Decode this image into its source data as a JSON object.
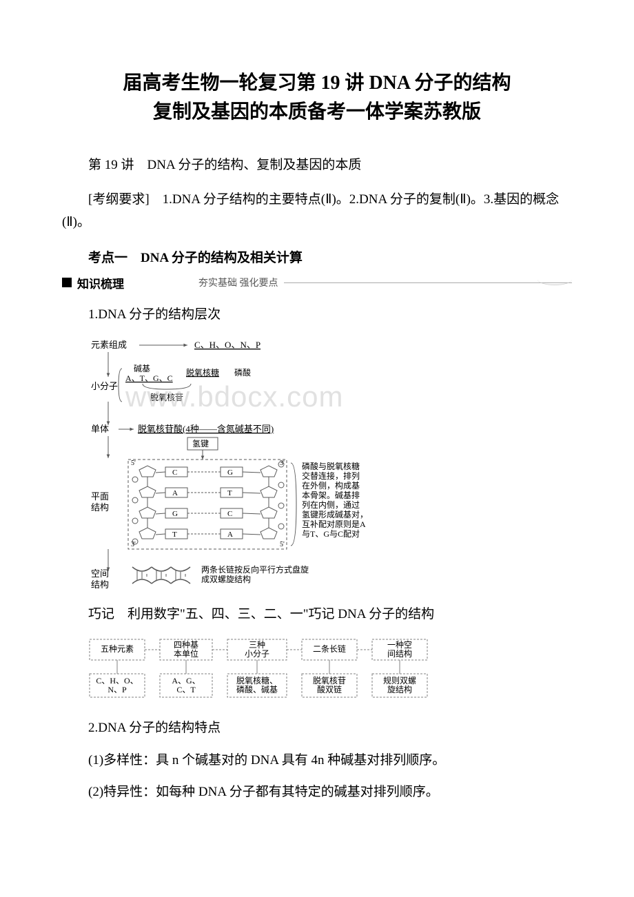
{
  "title_line1": "届高考生物一轮复习第 19 讲 DNA 分子的结构",
  "title_line2": "复制及基因的本质备考一体学案苏教版",
  "subtitle": "第 19 讲　DNA 分子的结构、复制及基因的本质",
  "bracket_note": "[考纲要求]　1.DNA 分子结构的主要特点(Ⅱ)。2.DNA 分子的复制(Ⅱ)。3.基因的概念(Ⅱ)。",
  "kaodian": "考点一　DNA 分子的结构及相关计算",
  "section_bar_label": "知识梳理",
  "section_bar_sub": "夯实基础  强化要点",
  "point1": "1.DNA 分子的结构层次",
  "qiaoji": "巧记　利用数字\"五、四、三、二、一\"巧记 DNA 分子的结构",
  "point2": "2.DNA 分子的结构特点",
  "point2_1": "(1)多样性：具 n 个碱基对的 DNA 具有 4n 种碱基对排列顺序。",
  "point2_2": "(2)特异性：如每种 DNA 分子都有其特定的碱基对排列顺序。",
  "watermark": "www.bdocx.com",
  "diagram1": {
    "elements_label": "元素组成",
    "elements": "C、H、O、N、P",
    "small_mol_label": "小分子",
    "base_label": "碱基",
    "bases": "A、T、G、C",
    "sugar": "脱氧核糖",
    "phosphate": "磷酸",
    "nucleoside": "脱氧核苷",
    "monomer_label": "单体",
    "monomer": "脱氧核苷酸(4种——含氮碱基不同)",
    "hbond": "氢键",
    "plane_label": "平面\n结构",
    "pairs": [
      "C",
      "G",
      "A",
      "T",
      "G",
      "C",
      "T",
      "A"
    ],
    "plane_note": "磷酸与脱氧核糖\n交替连接，排列\n在外侧，构成基\n本骨架。碱基排\n列在内侧，通过\n氢键形成碱基对，\n互补配对原则是A\n与T、G与C配对",
    "space_label": "空间\n结构",
    "space_note": "两条长链按反向平行方式盘旋\n成双螺旋结构",
    "end5": "5'",
    "end3": "3'",
    "colors": {
      "line": "#595959",
      "text": "#000000",
      "box_fill": "#ffffff"
    }
  },
  "diagram2": {
    "top": [
      "五种元素",
      "四种基\n本单位",
      "三种\n小分子",
      "二条长链",
      "一种空\n间结构"
    ],
    "bottom": [
      "C、H、O、\nN、P",
      "A、G、\nC、T",
      "脱氧核糖、\n磷酸、碱基",
      "脱氧核苷\n酸双链",
      "规则双螺\n旋结构"
    ],
    "colors": {
      "border": "#808080",
      "text": "#000000"
    }
  }
}
